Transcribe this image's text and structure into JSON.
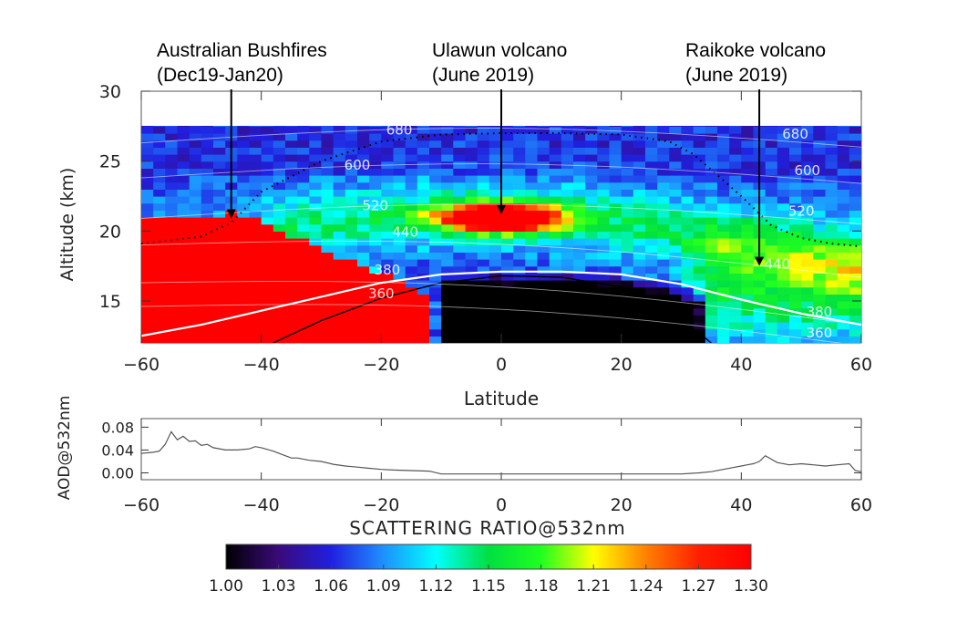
{
  "annotations": [
    {
      "line1": "Australian Bushfires",
      "line2": "(Dec19-Jan20)",
      "arrow_lat": -45,
      "arrow_alt": 20.9
    },
    {
      "line1": "Ulawun volcano",
      "line2": "(June 2019)",
      "arrow_lat": 0,
      "arrow_alt": 21.2
    },
    {
      "line1": "Raikoke volcano",
      "line2": "(June 2019)",
      "arrow_lat": 43,
      "arrow_alt": 17.5
    }
  ],
  "chart_data": [
    {
      "type": "heatmap",
      "title": "",
      "xlabel": "Latitude",
      "ylabel": "Altitude (km)",
      "xlim": [
        -60,
        60
      ],
      "ylim": [
        12,
        30
      ],
      "xticks": [
        -60,
        -40,
        -20,
        0,
        20,
        40,
        60
      ],
      "yticks": [
        15,
        20,
        25,
        30
      ],
      "xtick_labels": [
        "−60",
        "−40",
        "−20",
        "0",
        "20",
        "40",
        "60"
      ],
      "ytick_labels": [
        "15",
        "20",
        "25",
        "30"
      ],
      "data_top_altitude": 28,
      "colorscale_range": [
        1.0,
        1.3
      ],
      "features": [
        {
          "name": "Australian Bushfires plume",
          "lat_range": [
            -60,
            -12
          ],
          "alt_range": [
            12,
            21
          ],
          "value": 1.3
        },
        {
          "name": "Ulawun volcano plume",
          "lat_center": 0,
          "alt_center": 21,
          "value": 1.3
        },
        {
          "name": "Raikoke volcano plume",
          "lat_range": [
            30,
            60
          ],
          "alt_range": [
            14,
            20
          ],
          "value": 1.16
        },
        {
          "name": "Tropical low-scattering region",
          "lat_range": [
            -10,
            30
          ],
          "alt_range": [
            12,
            17
          ],
          "value": 1.0
        }
      ],
      "isentrope_labels": [
        {
          "text": "680",
          "lat": -17,
          "alt": 26.9
        },
        {
          "text": "600",
          "lat": -24,
          "alt": 24.4
        },
        {
          "text": "520",
          "lat": -21,
          "alt": 21.5
        },
        {
          "text": "440",
          "lat": -16,
          "alt": 19.6
        },
        {
          "text": "380",
          "lat": -19,
          "alt": 16.9
        },
        {
          "text": "360",
          "lat": -20,
          "alt": 15.2
        },
        {
          "text": "680",
          "lat": 49,
          "alt": 26.6
        },
        {
          "text": "600",
          "lat": 51,
          "alt": 24.0
        },
        {
          "text": "520",
          "lat": 50,
          "alt": 21.1
        },
        {
          "text": "440",
          "lat": 46,
          "alt": 17.3
        },
        {
          "text": "380",
          "lat": 53,
          "alt": 13.9
        },
        {
          "text": "360",
          "lat": 53,
          "alt": 12.4
        }
      ],
      "tropopause_lat": [
        -60,
        -50,
        -40,
        -30,
        -20,
        -10,
        0,
        10,
        20,
        30,
        40,
        50,
        60
      ],
      "tropopause_alt": [
        12.5,
        13.3,
        14.3,
        15.3,
        16.3,
        16.9,
        17.1,
        17.1,
        16.9,
        16.2,
        15.1,
        14.1,
        13.3
      ],
      "dotted_boundary_lat": [
        -60,
        -50,
        -45,
        -40,
        -30,
        -20,
        -10,
        0,
        10,
        20,
        28,
        32,
        36,
        40,
        45,
        50,
        55,
        60
      ],
      "dotted_boundary_alt": [
        19.1,
        19.6,
        20.6,
        22.8,
        25.0,
        26.4,
        26.9,
        27.0,
        27.0,
        26.9,
        26.4,
        25.5,
        24.0,
        22.5,
        20.4,
        19.5,
        19.1,
        18.9
      ]
    },
    {
      "type": "line",
      "title": "",
      "xlabel": "SCATTERING RATIO@532nm",
      "ylabel": "AOD@532nm",
      "xlim": [
        -60,
        60
      ],
      "ylim": [
        -0.012,
        0.095
      ],
      "xticks": [
        -60,
        -40,
        -20,
        0,
        20,
        40,
        60
      ],
      "yticks": [
        0.0,
        0.04,
        0.08
      ],
      "xtick_labels": [
        "−60",
        "−40",
        "−20",
        "0",
        "20",
        "40",
        "60"
      ],
      "ytick_labels": [
        "0.00",
        "0.04",
        "0.08"
      ],
      "x": [
        -60,
        -58,
        -57,
        -56,
        -55,
        -54,
        -53,
        -52,
        -51,
        -50,
        -49,
        -48,
        -46,
        -44,
        -42,
        -41,
        -40,
        -38,
        -36,
        -35,
        -34,
        -32,
        -30,
        -28,
        -26,
        -24,
        -22,
        -20,
        -18,
        -15,
        -12,
        -10,
        -5,
        0,
        5,
        10,
        15,
        20,
        25,
        30,
        33,
        35,
        37,
        39,
        40,
        41,
        42,
        43,
        44,
        45,
        46,
        48,
        50,
        52,
        54,
        56,
        58,
        59,
        60
      ],
      "y": [
        0.034,
        0.036,
        0.038,
        0.05,
        0.072,
        0.058,
        0.064,
        0.055,
        0.056,
        0.048,
        0.05,
        0.044,
        0.04,
        0.04,
        0.042,
        0.046,
        0.044,
        0.038,
        0.03,
        0.026,
        0.026,
        0.022,
        0.02,
        0.015,
        0.012,
        0.01,
        0.008,
        0.006,
        0.005,
        0.004,
        0.003,
        -0.002,
        -0.002,
        -0.002,
        -0.002,
        -0.002,
        -0.002,
        -0.002,
        -0.002,
        -0.002,
        0.0,
        0.002,
        0.006,
        0.01,
        0.012,
        0.014,
        0.016,
        0.02,
        0.03,
        0.024,
        0.018,
        0.014,
        0.016,
        0.014,
        0.012,
        0.014,
        0.016,
        0.004,
        0.002
      ]
    },
    {
      "type": "colorbar",
      "ticks": [
        1.0,
        1.03,
        1.06,
        1.09,
        1.12,
        1.15,
        1.18,
        1.21,
        1.24,
        1.27,
        1.3
      ],
      "tick_labels": [
        "1.00",
        "1.03",
        "1.06",
        "1.09",
        "1.12",
        "1.15",
        "1.18",
        "1.21",
        "1.24",
        "1.27",
        "1.30"
      ],
      "colors": [
        "#000000",
        "#3a0a7a",
        "#2020e0",
        "#1e90ff",
        "#00ffff",
        "#00e040",
        "#20ff20",
        "#ffff00",
        "#ff8000",
        "#ff2000",
        "#ff0000"
      ]
    }
  ]
}
